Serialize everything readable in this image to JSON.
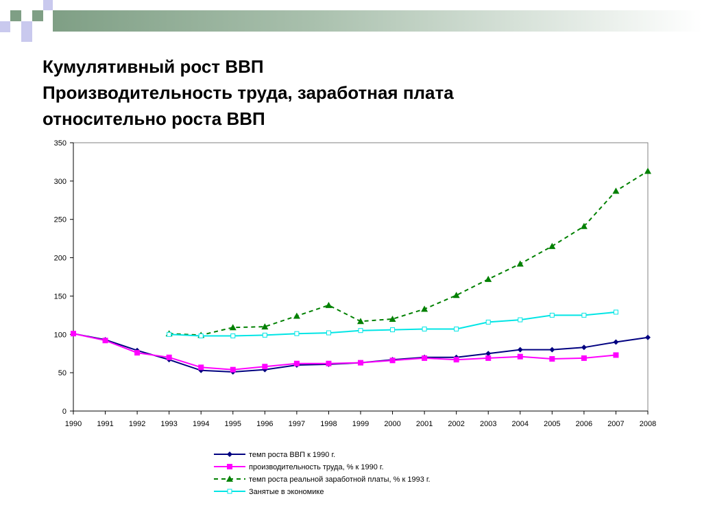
{
  "slide": {
    "title_lines": [
      "Кумулятивный рост ВВП",
      "Производительность труда, заработная плата",
      "относительно роста ВВП"
    ],
    "decor_colors": {
      "square_green": "#7f9f85",
      "square_lavender": "#c9c9ee",
      "band_start": "#7f9f85",
      "band_end": "#ffffff"
    }
  },
  "chart_data": {
    "type": "line",
    "x": [
      "1990",
      "1991",
      "1992",
      "1993",
      "1994",
      "1995",
      "1996",
      "1997",
      "1998",
      "1999",
      "2000",
      "2001",
      "2002",
      "2003",
      "2004",
      "2005",
      "2006",
      "2007",
      "2008"
    ],
    "ylim": [
      0,
      350
    ],
    "yticks": [
      "0",
      "50",
      "100",
      "150",
      "200",
      "250",
      "300",
      "350"
    ],
    "grid": false,
    "legend_position": "bottom",
    "series": [
      {
        "name": "темп роста ВВП к 1990 г.",
        "color": "#000080",
        "marker": "diamond",
        "dash": "solid",
        "values": [
          101,
          93,
          79,
          67,
          53,
          51,
          54,
          60,
          61,
          63,
          67,
          70,
          70,
          75,
          80,
          80,
          83,
          90,
          96
        ]
      },
      {
        "name": "производительность труда, % к 1990 г.",
        "color": "#ff00ff",
        "marker": "square",
        "dash": "solid",
        "values": [
          101,
          92,
          76,
          70,
          57,
          54,
          58,
          62,
          62,
          63,
          66,
          69,
          67,
          69,
          71,
          68,
          69,
          73,
          null
        ]
      },
      {
        "name": "темп роста реальной заработной платы, % к 1993 г.",
        "color": "#008000",
        "marker": "triangle",
        "dash": "dashed",
        "values": [
          null,
          null,
          null,
          101,
          99,
          109,
          110,
          124,
          138,
          117,
          120,
          133,
          151,
          172,
          192,
          215,
          241,
          287,
          313
        ]
      },
      {
        "name": "Занятые в экономике",
        "color": "#00e5e5",
        "marker": "square-open",
        "dash": "solid",
        "values": [
          null,
          null,
          null,
          100,
          98,
          98,
          99,
          101,
          102,
          105,
          106,
          107,
          107,
          116,
          119,
          125,
          125,
          129,
          null
        ]
      }
    ]
  }
}
